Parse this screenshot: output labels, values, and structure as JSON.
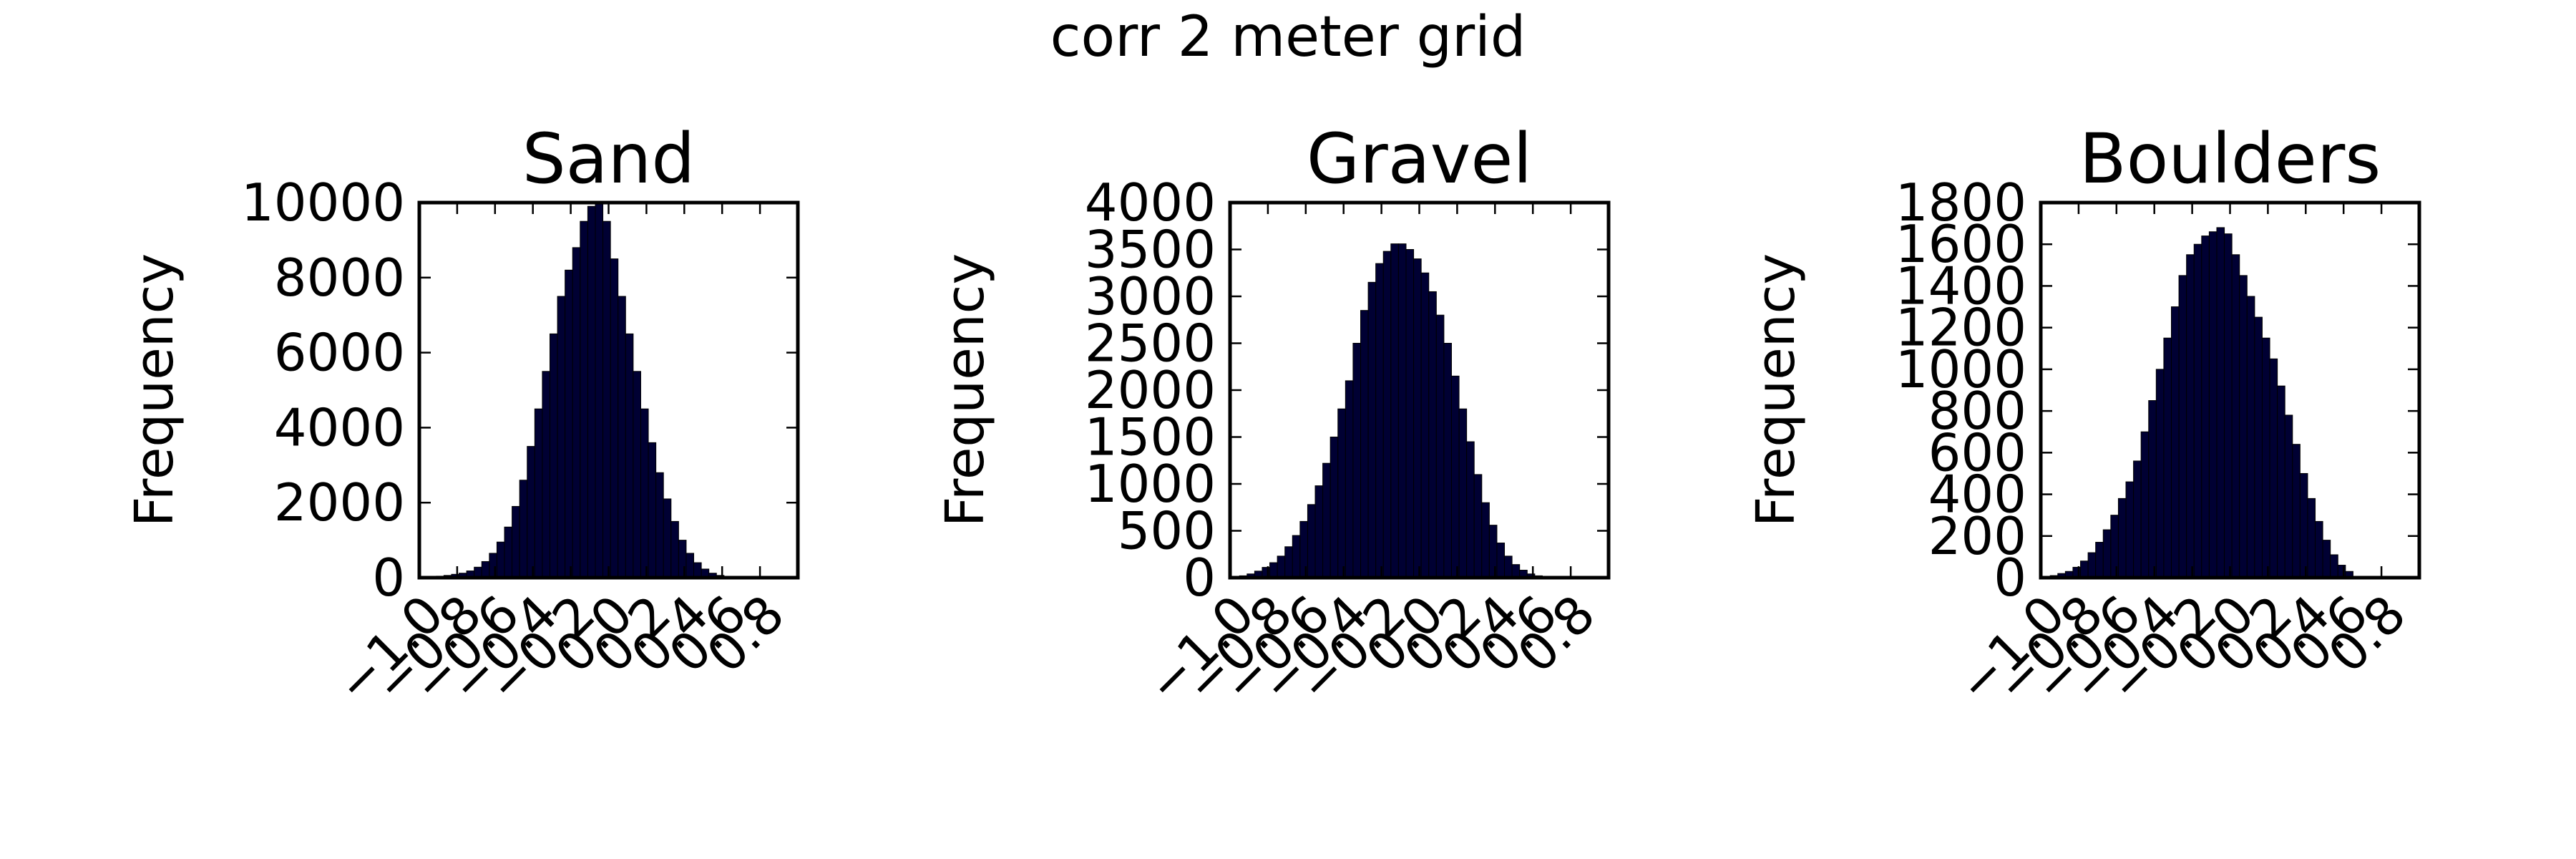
{
  "figure": {
    "suptitle": "corr 2 meter grid"
  },
  "chart_data": [
    {
      "type": "bar",
      "title": "Sand",
      "ylabel": "Frequency",
      "xlim": [
        -1.0,
        1.0
      ],
      "ylim": [
        0,
        10000
      ],
      "yticks": [
        "0",
        "2000",
        "4000",
        "6000",
        "8000",
        "10000"
      ],
      "xticks": [
        "−1.0",
        "−0.8",
        "−0.6",
        "−0.4",
        "−0.2",
        "0.0",
        "0.2",
        "0.4",
        "0.6",
        "0.8"
      ],
      "bin_start": -0.95,
      "bin_width": 0.04,
      "values": [
        20,
        40,
        60,
        90,
        120,
        180,
        280,
        430,
        650,
        950,
        1350,
        1900,
        2600,
        3500,
        4500,
        5500,
        6500,
        7500,
        8200,
        8800,
        9500,
        9900,
        10000,
        9500,
        8500,
        7500,
        6500,
        5500,
        4500,
        3600,
        2800,
        2100,
        1500,
        1000,
        650,
        400,
        230,
        120,
        60,
        30
      ]
    },
    {
      "type": "bar",
      "title": "Gravel",
      "ylabel": "Frequency",
      "xlim": [
        -1.0,
        1.0
      ],
      "ylim": [
        0,
        4000
      ],
      "yticks": [
        "0",
        "500",
        "1000",
        "1500",
        "2000",
        "2500",
        "3000",
        "3500",
        "4000"
      ],
      "xticks": [
        "−1.0",
        "−0.8",
        "−0.6",
        "−0.4",
        "−0.2",
        "0.0",
        "0.2",
        "0.4",
        "0.6",
        "0.8"
      ],
      "bin_start": -0.95,
      "bin_width": 0.04,
      "values": [
        20,
        40,
        70,
        110,
        160,
        230,
        330,
        450,
        600,
        780,
        980,
        1220,
        1500,
        1800,
        2100,
        2500,
        2850,
        3150,
        3350,
        3480,
        3560,
        3560,
        3500,
        3400,
        3250,
        3050,
        2800,
        2500,
        2150,
        1800,
        1450,
        1100,
        800,
        560,
        370,
        230,
        140,
        80,
        40,
        20
      ]
    },
    {
      "type": "bar",
      "title": "Boulders",
      "ylabel": "Frequency",
      "xlim": [
        -1.0,
        1.0
      ],
      "ylim": [
        0,
        1800
      ],
      "yticks": [
        "0",
        "200",
        "400",
        "600",
        "800",
        "1000",
        "1200",
        "1400",
        "1600",
        "1800"
      ],
      "xticks": [
        "−1.0",
        "−0.8",
        "−0.6",
        "−0.4",
        "−0.2",
        "0.0",
        "0.2",
        "0.4",
        "0.6",
        "0.8"
      ],
      "bin_start": -0.95,
      "bin_width": 0.04,
      "values": [
        10,
        20,
        30,
        50,
        80,
        120,
        170,
        230,
        300,
        380,
        460,
        560,
        700,
        850,
        1000,
        1150,
        1300,
        1450,
        1550,
        1600,
        1640,
        1660,
        1680,
        1650,
        1550,
        1450,
        1350,
        1250,
        1150,
        1050,
        920,
        780,
        640,
        500,
        380,
        270,
        180,
        110,
        60,
        30
      ]
    }
  ]
}
